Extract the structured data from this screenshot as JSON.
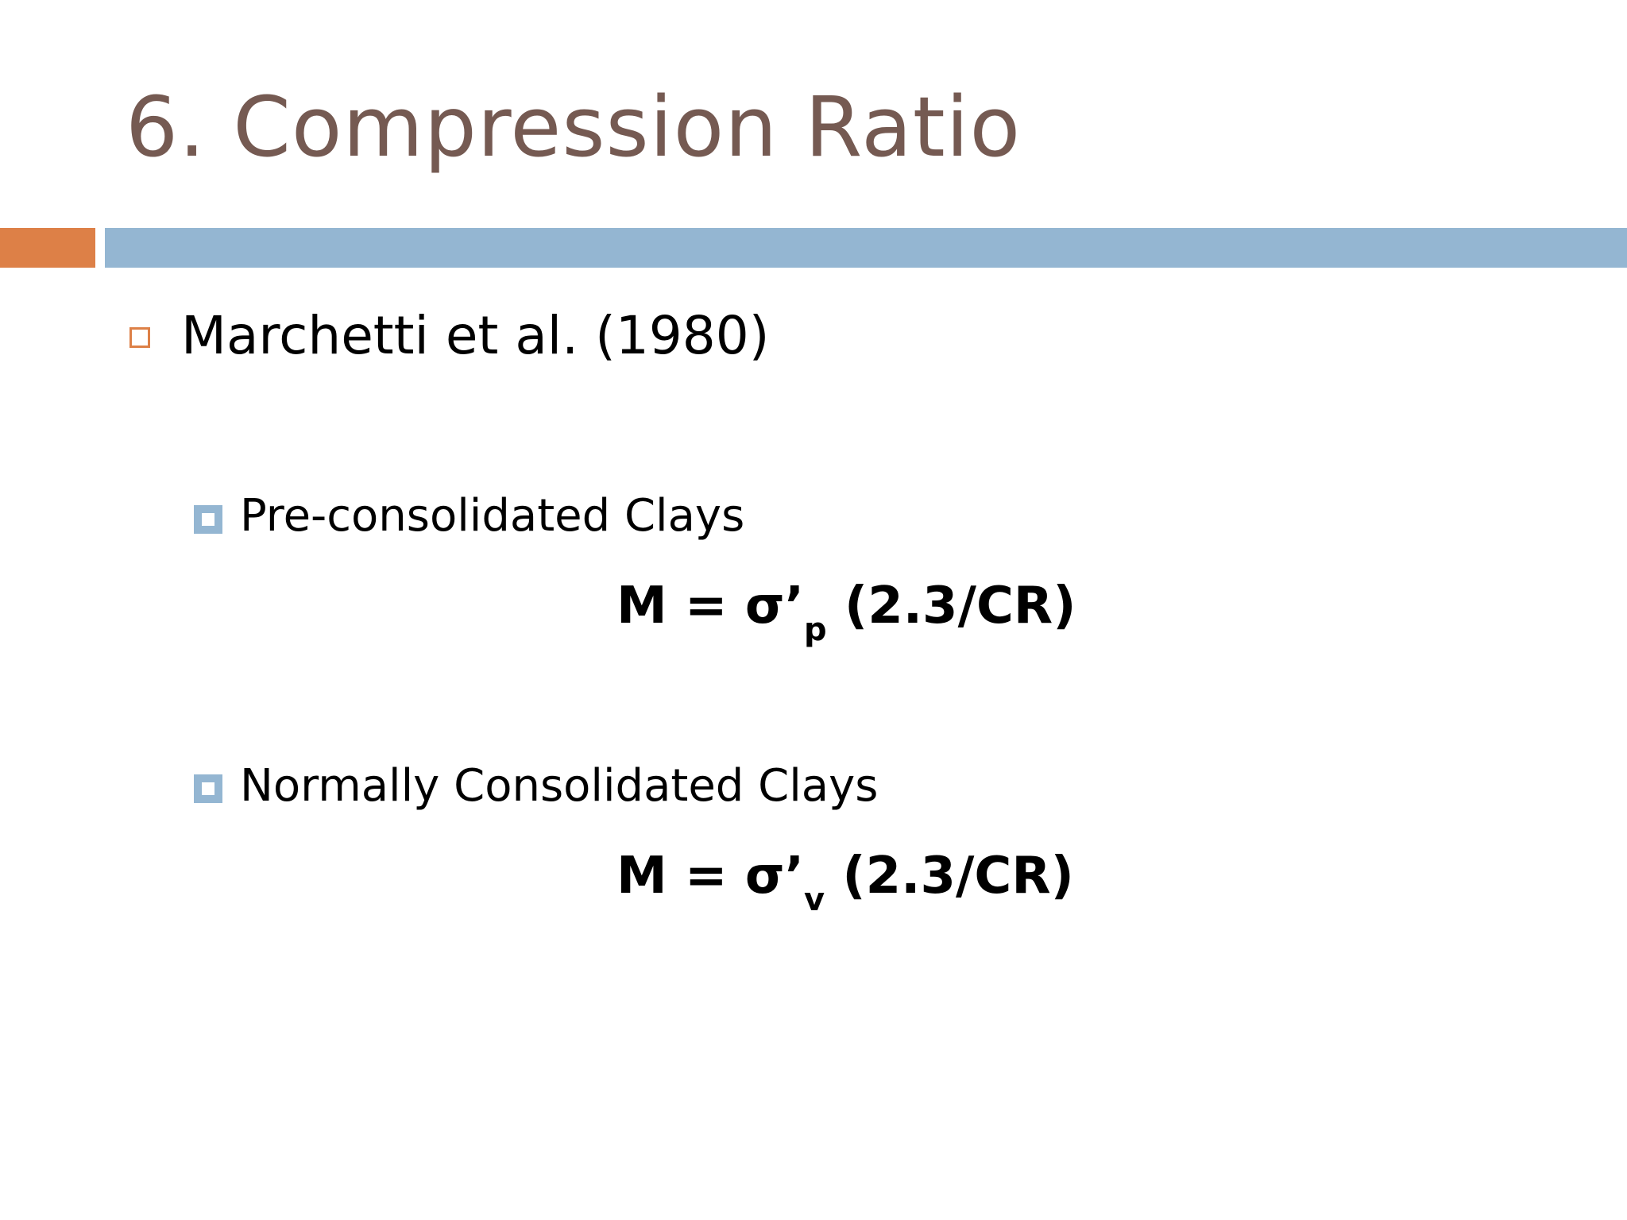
{
  "slide": {
    "title": "6. Compression Ratio",
    "bullet": {
      "label": "Marchetti et al. (1980)",
      "items": [
        {
          "label": "Pre-consolidated Clays",
          "formula": {
            "lhs": "M = σ’",
            "subscript": "p",
            "rhs": " (2.3/CR)"
          }
        },
        {
          "label": "Normally Consolidated Clays",
          "formula": {
            "lhs": "M = σ’",
            "subscript": "v",
            "rhs": " (2.3/CR)"
          }
        }
      ]
    },
    "colors": {
      "title": "#755a52",
      "accent_orange": "#dd8047",
      "accent_blue": "#94b6d2"
    }
  }
}
